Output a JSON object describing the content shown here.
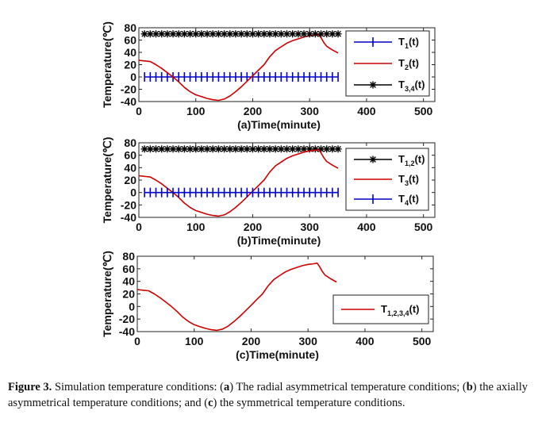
{
  "chart_data": [
    {
      "type": "line",
      "panel": "a",
      "xlabel": "(a)Time(minute)",
      "ylabel": "Temperature(℃)",
      "xlim": [
        0,
        520
      ],
      "ylim": [
        -40,
        80
      ],
      "xticks": [
        0,
        100,
        200,
        300,
        400,
        500
      ],
      "yticks": [
        -40,
        -20,
        0,
        20,
        40,
        60,
        80
      ],
      "legend_position": "top-right",
      "series": [
        {
          "name": "T1(t)",
          "main": "T",
          "sub": "1",
          "suffix": "(t)",
          "color": "#0000cc",
          "marker": "plus",
          "kind": "const",
          "value": 0,
          "x_start": 10,
          "x_end": 350,
          "step": 10
        },
        {
          "name": "T2(t)",
          "main": "T",
          "sub": "2",
          "suffix": "(t)",
          "color": "#cc0000",
          "marker": "none",
          "kind": "profile"
        },
        {
          "name": "T3,4(t)",
          "main": "T",
          "sub": "3,4",
          "suffix": "(t)",
          "color": "#000000",
          "marker": "star",
          "kind": "const",
          "value": 70,
          "x_start": 10,
          "x_end": 350,
          "step": 10
        }
      ]
    },
    {
      "type": "line",
      "panel": "b",
      "xlabel": "(b)Time(minute)",
      "ylabel": "Temperature(℃)",
      "xlim": [
        0,
        520
      ],
      "ylim": [
        -40,
        80
      ],
      "xticks": [
        0,
        100,
        200,
        300,
        400,
        500
      ],
      "yticks": [
        -40,
        -20,
        0,
        20,
        40,
        60,
        80
      ],
      "legend_position": "top-right",
      "series": [
        {
          "name": "T1,2(t)",
          "main": "T",
          "sub": "1,2",
          "suffix": "(t)",
          "color": "#000000",
          "marker": "star",
          "kind": "const",
          "value": 70,
          "x_start": 10,
          "x_end": 350,
          "step": 10
        },
        {
          "name": "T3(t)",
          "main": "T",
          "sub": "3",
          "suffix": "(t)",
          "color": "#cc0000",
          "marker": "none",
          "kind": "profile"
        },
        {
          "name": "T4(t)",
          "main": "T",
          "sub": "4",
          "suffix": "(t)",
          "color": "#0000cc",
          "marker": "plus",
          "kind": "const",
          "value": 0,
          "x_start": 10,
          "x_end": 350,
          "step": 10
        }
      ]
    },
    {
      "type": "line",
      "panel": "c",
      "xlabel": "(c)Time(minute)",
      "ylabel": "Temperature(℃)",
      "xlim": [
        0,
        520
      ],
      "ylim": [
        -40,
        80
      ],
      "xticks": [
        0,
        100,
        200,
        300,
        400,
        500
      ],
      "yticks": [
        -40,
        -20,
        0,
        20,
        40,
        60,
        80
      ],
      "legend_position": "lower-right",
      "series": [
        {
          "name": "T1,2,3,4(t)",
          "main": "T",
          "sub": "1,2,3,4",
          "suffix": "(t)",
          "color": "#cc0000",
          "marker": "none",
          "kind": "profile"
        }
      ]
    }
  ],
  "profile": {
    "x": [
      0,
      10,
      20,
      30,
      40,
      50,
      60,
      70,
      80,
      90,
      100,
      110,
      120,
      130,
      140,
      150,
      160,
      170,
      180,
      190,
      200,
      210,
      220,
      230,
      240,
      250,
      260,
      270,
      280,
      290,
      300,
      310,
      316,
      320,
      325,
      330,
      340,
      350
    ],
    "y": [
      27,
      26,
      25,
      20,
      14,
      7,
      0,
      -8,
      -17,
      -24,
      -29,
      -32,
      -35,
      -37,
      -38,
      -36,
      -31,
      -24,
      -16,
      -7,
      2,
      11,
      20,
      33,
      43,
      49,
      55,
      59,
      62,
      65,
      67,
      68,
      69,
      64,
      56,
      50,
      44,
      39
    ]
  },
  "caption": {
    "label": "Figure 3.",
    "text_1": " Simulation temperature conditions: (",
    "a": "a",
    "text_2": ") The radial asymmetrical temperature conditions; (",
    "b": "b",
    "text_3": ") the axially asymmetrical temperature conditions; and (",
    "c": "c",
    "text_4": ") the symmetrical temperature conditions."
  }
}
